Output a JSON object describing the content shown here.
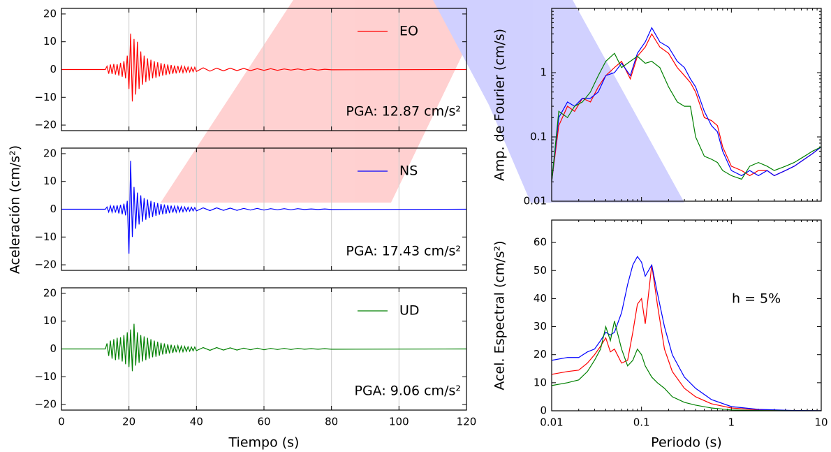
{
  "chart_data": [
    {
      "type": "line",
      "xlim": [
        0,
        120
      ],
      "ylim": [
        -22,
        22
      ],
      "grid": "x",
      "xticks": [
        0,
        20,
        40,
        60,
        80,
        100,
        120
      ],
      "yticks": [
        {
          "value": -20,
          "label": "−20"
        },
        {
          "value": -10,
          "label": "−10"
        },
        0,
        10,
        20
      ],
      "annotation": "PGA: 12.87 cm/s²",
      "x": [
        0,
        13,
        13.5,
        14,
        14.5,
        15,
        15.5,
        16,
        16.5,
        17,
        17.5,
        18,
        18.5,
        19,
        19.5,
        20,
        20.5,
        21,
        21.5,
        22,
        22.5,
        23,
        23.5,
        24,
        24.5,
        25,
        25.5,
        26,
        26.5,
        27,
        27.5,
        28,
        28.5,
        29,
        29.5,
        30,
        30.5,
        31,
        31.5,
        32,
        32.5,
        33,
        33.5,
        34,
        34.5,
        35,
        35.5,
        36,
        36.5,
        37,
        37.5,
        38,
        38.5,
        39,
        39.5,
        40,
        42,
        44,
        46,
        48,
        50,
        52,
        54,
        56,
        58,
        60,
        62,
        64,
        66,
        68,
        70,
        72,
        74,
        76,
        78,
        80,
        120
      ],
      "series": [
        {
          "name": "EO",
          "color": "#ff0000",
          "values": [
            0,
            0,
            1.2,
            -1.5,
            1.8,
            -1.6,
            2,
            -1.8,
            1.9,
            -2.2,
            2.4,
            -2.6,
            3,
            -3.2,
            5,
            -7,
            12.87,
            -11.5,
            11,
            -9,
            10,
            -7,
            6.5,
            -5.5,
            5,
            -4.5,
            4,
            -4,
            3.5,
            -3.2,
            3,
            -3,
            2.6,
            -2.5,
            2.3,
            -2.2,
            2,
            -2,
            1.8,
            -1.7,
            1.6,
            -1.5,
            1.4,
            -1.4,
            1.3,
            -1.2,
            1.2,
            -1.1,
            1,
            -1,
            0.9,
            -0.9,
            0.8,
            -0.8,
            0.8,
            -0.7,
            0.6,
            -0.6,
            0.5,
            -0.5,
            0.5,
            -0.4,
            0.4,
            -0.4,
            0.3,
            -0.3,
            0.3,
            -0.3,
            0.2,
            -0.2,
            0.2,
            -0.2,
            0.2,
            -0.2,
            0.1,
            -0.1,
            0
          ]
        }
      ]
    },
    {
      "type": "line",
      "xlim": [
        0,
        120
      ],
      "ylim": [
        -22,
        22
      ],
      "grid": "x",
      "ylabel": "Aceleración (cm/s²)",
      "xticks": [
        0,
        20,
        40,
        60,
        80,
        100,
        120
      ],
      "yticks": [
        {
          "value": -20,
          "label": "−20"
        },
        {
          "value": -10,
          "label": "−10"
        },
        0,
        10,
        20
      ],
      "annotation": "PGA: 17.43 cm/s²",
      "x": [
        0,
        13,
        13.5,
        14,
        14.5,
        15,
        15.5,
        16,
        16.5,
        17,
        17.5,
        18,
        18.5,
        19,
        19.5,
        20,
        20.5,
        21,
        21.5,
        22,
        22.5,
        23,
        23.5,
        24,
        24.5,
        25,
        25.5,
        26,
        26.5,
        27,
        27.5,
        28,
        28.5,
        29,
        29.5,
        30,
        30.5,
        31,
        31.5,
        32,
        32.5,
        33,
        33.5,
        34,
        34.5,
        35,
        35.5,
        36,
        36.5,
        37,
        37.5,
        38,
        38.5,
        39,
        39.5,
        40,
        42,
        44,
        46,
        48,
        50,
        52,
        54,
        56,
        58,
        60,
        62,
        64,
        66,
        68,
        70,
        72,
        74,
        76,
        78,
        80,
        120
      ],
      "series": [
        {
          "name": "NS",
          "color": "#0000ff",
          "values": [
            0,
            0,
            0.8,
            -1,
            1.2,
            -1.1,
            1.3,
            -1.2,
            1.4,
            -1.5,
            1.6,
            -1.8,
            2,
            -2.2,
            3,
            -16,
            17.43,
            -10,
            8,
            -7,
            6,
            -5.5,
            5,
            -4.5,
            4,
            -3.8,
            3.5,
            -3.2,
            3,
            -2.8,
            2.6,
            -2.4,
            2.2,
            -2,
            1.9,
            -1.8,
            1.7,
            -1.6,
            1.5,
            -1.4,
            1.3,
            -1.2,
            1.1,
            -1.1,
            1,
            -1,
            0.9,
            -0.9,
            0.8,
            -0.8,
            0.7,
            -0.7,
            0.7,
            -0.6,
            0.6,
            -0.6,
            0.5,
            -0.5,
            0.5,
            -0.4,
            0.4,
            -0.4,
            0.3,
            -0.3,
            0.3,
            -0.3,
            0.2,
            -0.2,
            0.2,
            -0.2,
            0.2,
            -0.1,
            0.1,
            -0.1,
            0.1,
            -0.1,
            0
          ]
        }
      ]
    },
    {
      "type": "line",
      "xlim": [
        0,
        120
      ],
      "ylim": [
        -22,
        22
      ],
      "grid": "x",
      "xlabel": "Tiempo (s)",
      "xticks": [
        0,
        20,
        40,
        60,
        80,
        100,
        120
      ],
      "yticks": [
        {
          "value": -20,
          "label": "−20"
        },
        {
          "value": -10,
          "label": "−10"
        },
        0,
        10,
        20
      ],
      "annotation": "PGA: 9.06 cm/s²",
      "x": [
        0,
        13,
        13.5,
        14,
        14.5,
        15,
        15.5,
        16,
        16.5,
        17,
        17.5,
        18,
        18.5,
        19,
        19.5,
        20,
        20.5,
        21,
        21.5,
        22,
        22.5,
        23,
        23.5,
        24,
        24.5,
        25,
        25.5,
        26,
        26.5,
        27,
        27.5,
        28,
        28.5,
        29,
        29.5,
        30,
        30.5,
        31,
        31.5,
        32,
        32.5,
        33,
        33.5,
        34,
        34.5,
        35,
        35.5,
        36,
        36.5,
        37,
        37.5,
        38,
        38.5,
        39,
        39.5,
        40,
        42,
        44,
        46,
        48,
        50,
        52,
        54,
        56,
        58,
        60,
        62,
        64,
        66,
        68,
        70,
        72,
        74,
        76,
        78,
        80,
        120
      ],
      "series": [
        {
          "name": "UD",
          "color": "#008000",
          "values": [
            0,
            0,
            2,
            -2.5,
            3,
            -3.5,
            3.5,
            -4,
            4,
            -3.8,
            4.2,
            -4.5,
            5,
            -5.5,
            6,
            -6.5,
            7,
            -8,
            9.06,
            -6,
            6,
            -5,
            5,
            -4.5,
            4.5,
            -4,
            4,
            -3.5,
            3.5,
            -3,
            3,
            -2.8,
            2.6,
            -2.4,
            2.2,
            -2,
            2,
            -1.8,
            1.7,
            -1.6,
            1.5,
            -1.4,
            1.3,
            -1.2,
            1.2,
            -1.1,
            1,
            -1,
            0.9,
            -0.9,
            0.8,
            -0.8,
            0.7,
            -0.7,
            0.7,
            -0.6,
            0.5,
            -0.5,
            0.5,
            -0.4,
            0.4,
            -0.4,
            0.3,
            -0.3,
            0.3,
            -0.3,
            0.2,
            -0.2,
            0.2,
            -0.2,
            0.2,
            -0.1,
            0.1,
            -0.1,
            0.1,
            -0.1,
            0
          ]
        }
      ]
    },
    {
      "type": "line",
      "xscale": "log",
      "yscale": "log",
      "xlim": [
        0.01,
        10
      ],
      "ylim": [
        0.01,
        10
      ],
      "ylabel": "Amp. de Fourier (cm/s)",
      "xticks": [
        0.01,
        0.1,
        1,
        10
      ],
      "yticks": [
        0.01,
        0.1,
        1
      ],
      "x": [
        0.01,
        0.012,
        0.015,
        0.018,
        0.022,
        0.027,
        0.033,
        0.04,
        0.05,
        0.06,
        0.075,
        0.09,
        0.11,
        0.13,
        0.16,
        0.2,
        0.25,
        0.3,
        0.35,
        0.4,
        0.5,
        0.6,
        0.7,
        0.8,
        1,
        1.3,
        1.6,
        2,
        2.5,
        3,
        4,
        5,
        6.5,
        8,
        10
      ],
      "series": [
        {
          "name": "EO",
          "color": "#ff0000",
          "values": [
            0.02,
            0.15,
            0.3,
            0.25,
            0.4,
            0.35,
            0.6,
            0.9,
            1.2,
            1.5,
            0.8,
            1.8,
            2.5,
            4,
            2.5,
            2,
            1.2,
            0.9,
            0.7,
            0.5,
            0.2,
            0.18,
            0.15,
            0.07,
            0.035,
            0.03,
            0.025,
            0.03,
            0.03,
            0.025,
            0.03,
            0.035,
            0.045,
            0.055,
            0.07
          ]
        },
        {
          "name": "NS",
          "color": "#0000ff",
          "values": [
            0.02,
            0.2,
            0.35,
            0.3,
            0.4,
            0.4,
            0.5,
            0.9,
            1,
            1.4,
            0.9,
            2,
            3,
            5,
            3,
            2.5,
            1.5,
            1.2,
            0.8,
            0.6,
            0.25,
            0.15,
            0.12,
            0.06,
            0.03,
            0.025,
            0.03,
            0.025,
            0.03,
            0.025,
            0.03,
            0.035,
            0.045,
            0.055,
            0.07
          ]
        },
        {
          "name": "UD",
          "color": "#008000",
          "values": [
            0.02,
            0.25,
            0.2,
            0.3,
            0.35,
            0.5,
            0.9,
            1.5,
            2,
            1.2,
            1.5,
            1.8,
            1.4,
            1.5,
            1.2,
            0.6,
            0.35,
            0.3,
            0.3,
            0.1,
            0.05,
            0.045,
            0.04,
            0.03,
            0.025,
            0.022,
            0.035,
            0.04,
            0.035,
            0.03,
            0.035,
            0.04,
            0.05,
            0.06,
            0.07
          ]
        }
      ]
    },
    {
      "type": "line",
      "xscale": "log",
      "xlim": [
        0.01,
        10
      ],
      "ylim": [
        0,
        68
      ],
      "ylabel": "Acel. Espectral (cm/s²)",
      "xlabel": "Periodo (s)",
      "annotation": "h = 5%",
      "xticks": [
        0.01,
        0.1,
        1,
        10
      ],
      "yticks": [
        0,
        10,
        20,
        30,
        40,
        50,
        60
      ],
      "x": [
        0.01,
        0.015,
        0.02,
        0.025,
        0.03,
        0.035,
        0.04,
        0.045,
        0.05,
        0.06,
        0.07,
        0.08,
        0.09,
        0.1,
        0.11,
        0.13,
        0.15,
        0.18,
        0.22,
        0.3,
        0.4,
        0.6,
        1,
        2,
        5,
        10
      ],
      "series": [
        {
          "name": "EO",
          "color": "#ff0000",
          "values": [
            13,
            14,
            14.5,
            17,
            20,
            23,
            26,
            21,
            22,
            17,
            18,
            28,
            38,
            40,
            31,
            52,
            38,
            22,
            14,
            8,
            5,
            2.5,
            1,
            0.3,
            0.05,
            0.02
          ]
        },
        {
          "name": "NS",
          "color": "#0000ff",
          "values": [
            18,
            19,
            19,
            21,
            22,
            25,
            28,
            27,
            28,
            35,
            45,
            52,
            55,
            53,
            48,
            52,
            42,
            30,
            20,
            12,
            8,
            4,
            1.5,
            0.5,
            0.1,
            0.03
          ]
        },
        {
          "name": "UD",
          "color": "#008000",
          "values": [
            9,
            10,
            11,
            14,
            18,
            22,
            30,
            25,
            32,
            22,
            16,
            18,
            22,
            20,
            16,
            12,
            10,
            8,
            5,
            3,
            2,
            1,
            0.3,
            0.1,
            0.02,
            0.01
          ]
        }
      ]
    }
  ]
}
